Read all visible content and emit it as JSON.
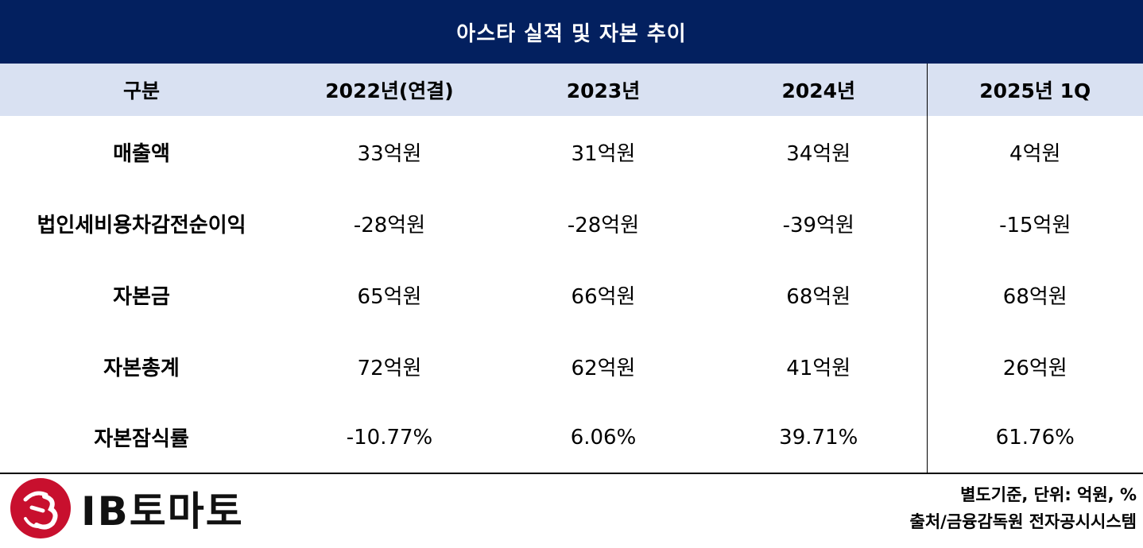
{
  "title": "아스타 실적 및 자본 추이",
  "headers": [
    "구분",
    "2022년(연결)",
    "2023년",
    "2024년",
    "2025년 1Q"
  ],
  "rows": [
    {
      "label": "매출액",
      "values": [
        "33억원",
        "31억원",
        "34억원",
        "4억원"
      ]
    },
    {
      "label": "법인세비용차감전순이익",
      "values": [
        "-28억원",
        "-28억원",
        "-39억원",
        "-15억원"
      ]
    },
    {
      "label": "자본금",
      "values": [
        "65억원",
        "66억원",
        "68억원",
        "68억원"
      ]
    },
    {
      "label": "자본총계",
      "values": [
        "72억원",
        "62억원",
        "41억원",
        "26억원"
      ]
    },
    {
      "label": "자본잠식률",
      "values": [
        "-10.77%",
        "6.06%",
        "39.71%",
        "61.76%"
      ]
    }
  ],
  "logo": {
    "text": "IB토마토",
    "color": "#c8102e"
  },
  "footer": {
    "basis": "별도기준, 단위: 억원, %",
    "source": "출처/금융감독원 전자공시시스템"
  },
  "colors": {
    "title_bg": "#03205f",
    "header_bg": "#d9e1f2"
  }
}
